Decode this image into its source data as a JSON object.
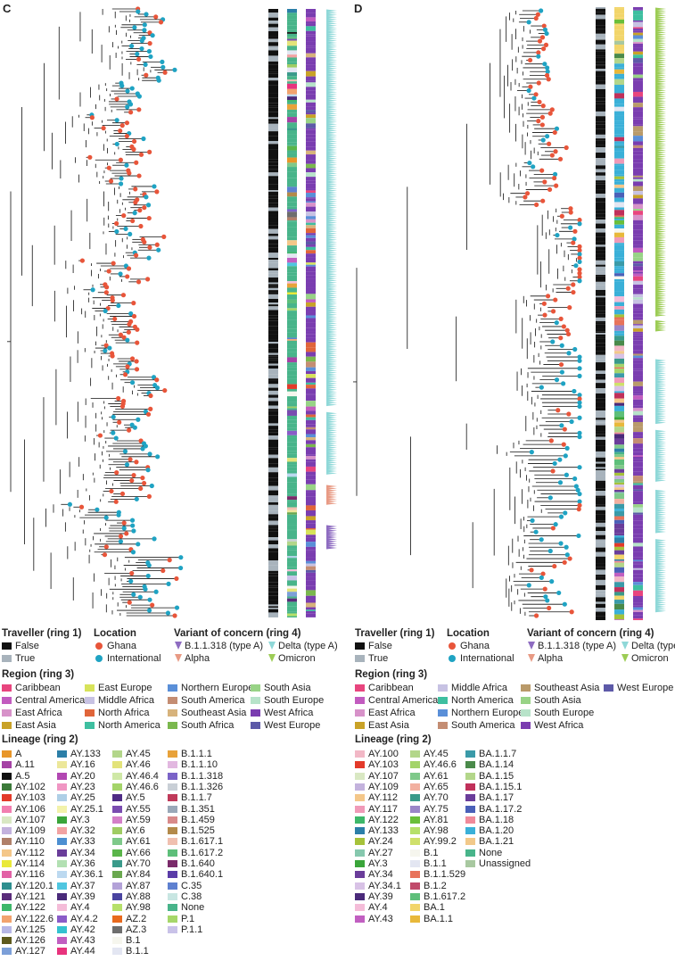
{
  "panels": [
    {
      "letter": "C"
    },
    {
      "letter": "D"
    }
  ],
  "colors": {
    "ghana": "#e8553a",
    "international": "#1fa3c3",
    "delta": "#8fd8d8",
    "alpha": "#e89a84",
    "b11318": "#8e6cc1",
    "omicron": "#9ccc55"
  },
  "legends": [
    {
      "traveller_title": "Traveller (ring 1)",
      "traveller": [
        {
          "label": "False",
          "color": "#111111"
        },
        {
          "label": "True",
          "color": "#a8b3bc"
        }
      ],
      "location_title": "Location",
      "location": [
        {
          "label": "Ghana",
          "color": "#e8553a"
        },
        {
          "label": "International",
          "color": "#1fa3c3"
        }
      ],
      "voc_title": "Variant of concern (ring 4)",
      "voc": [
        {
          "label": "B.1.1.318 (type A)",
          "color": "#8e6cc1"
        },
        {
          "label": "Delta (type A)",
          "color": "#8fd8d8"
        },
        {
          "label": "Alpha",
          "color": "#e89a84"
        },
        {
          "label": "Omicron",
          "color": "#9ccc55"
        }
      ],
      "region_title": "Region (ring 3)",
      "region": [
        {
          "label": "Caribbean",
          "color": "#e8457e"
        },
        {
          "label": "Central America",
          "color": "#c25bbf"
        },
        {
          "label": "East Africa",
          "color": "#d792c9"
        },
        {
          "label": "East Asia",
          "color": "#c9a227"
        },
        {
          "label": "East Europe",
          "color": "#d7e35a"
        },
        {
          "label": "Middle Africa",
          "color": "#c7c2e3"
        },
        {
          "label": "North Africa",
          "color": "#e0653a"
        },
        {
          "label": "North America",
          "color": "#3ebfa0"
        },
        {
          "label": "Northern Europe",
          "color": "#5a8fd8"
        },
        {
          "label": "South America",
          "color": "#c48d73"
        },
        {
          "label": "Southeast Asia",
          "color": "#d7b37c"
        },
        {
          "label": "South Africa",
          "color": "#7bb84e"
        },
        {
          "label": "South Asia",
          "color": "#98d386"
        },
        {
          "label": "South Europe",
          "color": "#b7e3c9"
        },
        {
          "label": "West Africa",
          "color": "#7a3db0"
        },
        {
          "label": "West Europe",
          "color": "#5d5aa8"
        }
      ],
      "lineage_title": "Lineage (ring 2)",
      "lineage_columns": [
        [
          {
            "label": "A",
            "color": "#e8962a"
          },
          {
            "label": "A.11",
            "color": "#a542a5"
          },
          {
            "label": "A.5",
            "color": "#111111"
          },
          {
            "label": "AY.102",
            "color": "#3c7a3a"
          },
          {
            "label": "AY.103",
            "color": "#e33a2a"
          },
          {
            "label": "AY.106",
            "color": "#f27eb0"
          },
          {
            "label": "AY.107",
            "color": "#d9e8c3"
          },
          {
            "label": "AY.109",
            "color": "#c3b2dd"
          },
          {
            "label": "AY.110",
            "color": "#b0806a"
          },
          {
            "label": "AY.112",
            "color": "#f4c78a"
          },
          {
            "label": "AY.114",
            "color": "#e9e93a"
          },
          {
            "label": "AY.116",
            "color": "#e262a6"
          },
          {
            "label": "AY.120.1",
            "color": "#2e8f8f"
          },
          {
            "label": "AY.121",
            "color": "#5a2c7a"
          },
          {
            "label": "AY.122",
            "color": "#3eb86a"
          },
          {
            "label": "AY.122.6",
            "color": "#f2a36e"
          },
          {
            "label": "AY.125",
            "color": "#b7b7e6"
          },
          {
            "label": "AY.126",
            "color": "#5e5a1e"
          },
          {
            "label": "AY.127",
            "color": "#7c9fd8"
          }
        ],
        [
          {
            "label": "AY.133",
            "color": "#2c7fa8"
          },
          {
            "label": "AY.16",
            "color": "#ece79a"
          },
          {
            "label": "AY.20",
            "color": "#b247b2"
          },
          {
            "label": "AY.23",
            "color": "#f096c3"
          },
          {
            "label": "AY.25",
            "color": "#aecfe6"
          },
          {
            "label": "AY.25.1",
            "color": "#f2f2aa"
          },
          {
            "label": "AY.3",
            "color": "#3aa53a"
          },
          {
            "label": "AY.32",
            "color": "#f2a3a3"
          },
          {
            "label": "AY.33",
            "color": "#4d8fd1"
          },
          {
            "label": "AY.34",
            "color": "#6a3d9a"
          },
          {
            "label": "AY.36",
            "color": "#b2e0b2"
          },
          {
            "label": "AY.36.1",
            "color": "#bcd9f0"
          },
          {
            "label": "AY.37",
            "color": "#4fc6e0"
          },
          {
            "label": "AY.39",
            "color": "#4a2a7a"
          },
          {
            "label": "AY.4",
            "color": "#f4bcd8"
          },
          {
            "label": "AY.4.2",
            "color": "#8a5cc8"
          },
          {
            "label": "AY.42",
            "color": "#34c2d0"
          },
          {
            "label": "AY.43",
            "color": "#c15fc1"
          },
          {
            "label": "AY.44",
            "color": "#e8337d"
          }
        ],
        [
          {
            "label": "AY.45",
            "color": "#b3d68a"
          },
          {
            "label": "AY.46",
            "color": "#e3e37a"
          },
          {
            "label": "AY.46.4",
            "color": "#cfe8a6"
          },
          {
            "label": "AY.46.6",
            "color": "#a4d46a"
          },
          {
            "label": "AY.5",
            "color": "#4f2c86"
          },
          {
            "label": "AY.55",
            "color": "#7a4cb0"
          },
          {
            "label": "AY.59",
            "color": "#d480c8"
          },
          {
            "label": "AY.6",
            "color": "#9fcc63"
          },
          {
            "label": "AY.61",
            "color": "#7fc98a"
          },
          {
            "label": "AY.66",
            "color": "#5ab54a"
          },
          {
            "label": "AY.70",
            "color": "#3a9a8a"
          },
          {
            "label": "AY.84",
            "color": "#6aa84f"
          },
          {
            "label": "AY.87",
            "color": "#b3a2d8"
          },
          {
            "label": "AY.88",
            "color": "#4a44a0"
          },
          {
            "label": "AY.98",
            "color": "#b6e06a"
          },
          {
            "label": "AZ.2",
            "color": "#e86a1e"
          },
          {
            "label": "AZ.3",
            "color": "#6e6e6e"
          },
          {
            "label": "B.1",
            "color": "#f6f6ee"
          },
          {
            "label": "B.1.1",
            "color": "#e3e6f2"
          }
        ],
        [
          {
            "label": "B.1.1.1",
            "color": "#e8a23a"
          },
          {
            "label": "B.1.1.10",
            "color": "#e2b8e0"
          },
          {
            "label": "B.1.1.318",
            "color": "#7b63c8"
          },
          {
            "label": "B.1.1.326",
            "color": "#c9cfd6"
          },
          {
            "label": "B.1.1.7",
            "color": "#c03a5a"
          },
          {
            "label": "B.1.351",
            "color": "#9aa8b8"
          },
          {
            "label": "B.1.459",
            "color": "#d88a8a"
          },
          {
            "label": "B.1.525",
            "color": "#b38a4a"
          },
          {
            "label": "B.1.617.1",
            "color": "#f0c0b0"
          },
          {
            "label": "B.1.617.2",
            "color": "#5ebf7a"
          },
          {
            "label": "B.1.640",
            "color": "#7a2a6a"
          },
          {
            "label": "B.1.640.1",
            "color": "#5a3ca8"
          },
          {
            "label": "C.35",
            "color": "#5e80d0"
          },
          {
            "label": "C.38",
            "color": "#c8e6e2"
          },
          {
            "label": "None",
            "color": "#48b48a"
          },
          {
            "label": "P.1",
            "color": "#a6d76a"
          },
          {
            "label": "P.1.1",
            "color": "#c9c2e8"
          }
        ]
      ]
    },
    {
      "traveller_title": "Traveller (ring 1)",
      "traveller": [
        {
          "label": "False",
          "color": "#111111"
        },
        {
          "label": "True",
          "color": "#a8b3bc"
        }
      ],
      "location_title": "Location",
      "location": [
        {
          "label": "Ghana",
          "color": "#e8553a"
        },
        {
          "label": "International",
          "color": "#1fa3c3"
        }
      ],
      "voc_title": "Variant of concern (ring 4)",
      "voc": [
        {
          "label": "B.1.1.318 (type A)",
          "color": "#8e6cc1"
        },
        {
          "label": "Delta (type A)",
          "color": "#8fd8d8"
        },
        {
          "label": "Alpha",
          "color": "#e89a84"
        },
        {
          "label": "Omicron",
          "color": "#9ccc55"
        }
      ],
      "region_title": "Region (ring 3)",
      "region": [
        {
          "label": "Caribbean",
          "color": "#e8457e"
        },
        {
          "label": "Central America",
          "color": "#c25bbf"
        },
        {
          "label": "East Africa",
          "color": "#d792c9"
        },
        {
          "label": "East Asia",
          "color": "#c9a227"
        },
        {
          "label": "Middle Africa",
          "color": "#c7c2e3"
        },
        {
          "label": "North America",
          "color": "#3ebfa0"
        },
        {
          "label": "Northern Europe",
          "color": "#5a8fd8"
        },
        {
          "label": "South America",
          "color": "#c48d73"
        },
        {
          "label": "Southeast Asia",
          "color": "#b99a6a"
        },
        {
          "label": "South Asia",
          "color": "#98d386"
        },
        {
          "label": "South Europe",
          "color": "#b7e3c9"
        },
        {
          "label": "West Africa",
          "color": "#7a3db0"
        },
        {
          "label": "West Europe",
          "color": "#5d5aa8"
        }
      ],
      "lineage_title": "Lineage (ring 2)",
      "lineage_columns": [
        [
          {
            "label": "AY.100",
            "color": "#f2b8c6"
          },
          {
            "label": "AY.103",
            "color": "#e33a2a"
          },
          {
            "label": "AY.107",
            "color": "#d9e8c3"
          },
          {
            "label": "AY.109",
            "color": "#c3b2dd"
          },
          {
            "label": "AY.112",
            "color": "#f4c78a"
          },
          {
            "label": "AY.117",
            "color": "#f09ab8"
          },
          {
            "label": "AY.122",
            "color": "#3eb86a"
          },
          {
            "label": "AY.133",
            "color": "#2c7fa8"
          },
          {
            "label": "AY.24",
            "color": "#a6c23a"
          },
          {
            "label": "AY.27",
            "color": "#86c8ae"
          },
          {
            "label": "AY.3",
            "color": "#3aa53a"
          },
          {
            "label": "AY.34",
            "color": "#6a3d9a"
          },
          {
            "label": "AY.34.1",
            "color": "#d8c2e6"
          },
          {
            "label": "AY.39",
            "color": "#4a2a7a"
          },
          {
            "label": "AY.4",
            "color": "#f4bcd8"
          },
          {
            "label": "AY.43",
            "color": "#c15fc1"
          }
        ],
        [
          {
            "label": "AY.45",
            "color": "#b3d68a"
          },
          {
            "label": "AY.46.6",
            "color": "#a4d46a"
          },
          {
            "label": "AY.61",
            "color": "#7fc98a"
          },
          {
            "label": "AY.65",
            "color": "#f2b0a0"
          },
          {
            "label": "AY.70",
            "color": "#3a9a8a"
          },
          {
            "label": "AY.75",
            "color": "#9a86c8"
          },
          {
            "label": "AY.81",
            "color": "#6abf3a"
          },
          {
            "label": "AY.98",
            "color": "#b6e06a"
          },
          {
            "label": "AY.99.2",
            "color": "#cfe06a"
          },
          {
            "label": "B.1",
            "color": "#f6f6ee"
          },
          {
            "label": "B.1.1",
            "color": "#e3e6f2"
          },
          {
            "label": "B.1.1.529",
            "color": "#e8735a"
          },
          {
            "label": "B.1.2",
            "color": "#c04a6a"
          },
          {
            "label": "B.1.617.2",
            "color": "#5ebf7a"
          },
          {
            "label": "BA.1",
            "color": "#f2d56a"
          },
          {
            "label": "BA.1.1",
            "color": "#e8b83a"
          }
        ],
        [
          {
            "label": "BA.1.1.7",
            "color": "#3a9aa8"
          },
          {
            "label": "BA.1.14",
            "color": "#4a8a4a"
          },
          {
            "label": "BA.1.15",
            "color": "#b3d68a"
          },
          {
            "label": "BA.1.15.1",
            "color": "#c0305a"
          },
          {
            "label": "BA.1.17",
            "color": "#6a3d9a"
          },
          {
            "label": "BA.1.17.2",
            "color": "#4a60b8"
          },
          {
            "label": "BA.1.18",
            "color": "#f08a9a"
          },
          {
            "label": "BA.1.20",
            "color": "#3ab0d8"
          },
          {
            "label": "BA.1.21",
            "color": "#f2c98a"
          },
          {
            "label": "None",
            "color": "#48b48a"
          },
          {
            "label": "Unassigned",
            "color": "#a8c8a0"
          }
        ]
      ]
    }
  ]
}
